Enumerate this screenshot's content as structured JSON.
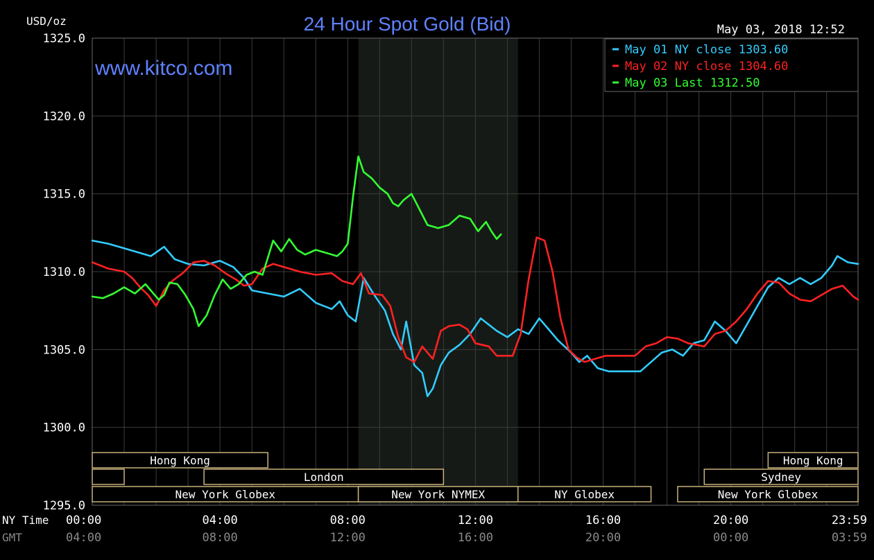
{
  "chart_data": {
    "type": "line",
    "title": "24 Hour Spot Gold (Bid)",
    "watermark": "www.kitco.com",
    "ylabel": "USD/oz",
    "timestamp": "May 03, 2018 12:52",
    "ylim": [
      1295,
      1325
    ],
    "xlim": [
      0,
      1439
    ],
    "grid": true,
    "legend_position": "top-right",
    "y_ticks": [
      {
        "value": 1325,
        "label": "1325.0"
      },
      {
        "value": 1320,
        "label": "1320.0"
      },
      {
        "value": 1315,
        "label": "1315.0"
      },
      {
        "value": 1310,
        "label": "1310.0"
      },
      {
        "value": 1305,
        "label": "1305.0"
      },
      {
        "value": 1300,
        "label": "1300.0"
      },
      {
        "value": 1295,
        "label": "1295.0"
      }
    ],
    "x_axis_rows": [
      {
        "label": "NY Time",
        "color": "#ffffff",
        "ticks": [
          {
            "m": 0,
            "label": "00:00"
          },
          {
            "m": 240,
            "label": "04:00"
          },
          {
            "m": 480,
            "label": "08:00"
          },
          {
            "m": 720,
            "label": "12:00"
          },
          {
            "m": 960,
            "label": "16:00"
          },
          {
            "m": 1200,
            "label": "20:00"
          },
          {
            "m": 1439,
            "label": "23:59"
          }
        ]
      },
      {
        "label": "GMT",
        "color": "#8a8a8a",
        "ticks": [
          {
            "m": 0,
            "label": "04:00"
          },
          {
            "m": 240,
            "label": "08:00"
          },
          {
            "m": 480,
            "label": "12:00"
          },
          {
            "m": 720,
            "label": "16:00"
          },
          {
            "m": 960,
            "label": "20:00"
          },
          {
            "m": 1200,
            "label": "00:00"
          },
          {
            "m": 1439,
            "label": "03:59"
          }
        ]
      }
    ],
    "shaded_region": [
      500,
      800
    ],
    "sessions": [
      {
        "label": "Hong Kong",
        "start": 0,
        "end": 330,
        "row": 1
      },
      {
        "label": "",
        "start": 0,
        "end": 60,
        "row": 2
      },
      {
        "label": "London",
        "start": 210,
        "end": 660,
        "row": 2
      },
      {
        "label": "New York Globex",
        "start": 0,
        "end": 500,
        "row": 3
      },
      {
        "label": "New York NYMEX",
        "start": 500,
        "end": 800,
        "row": 3
      },
      {
        "label": "NY Globex",
        "start": 800,
        "end": 1050,
        "row": 3
      },
      {
        "label": "Hong Kong",
        "start": 1270,
        "end": 1439,
        "row": 1
      },
      {
        "label": "Sydney",
        "start": 1150,
        "end": 1439,
        "row": 2
      },
      {
        "label": "New York Globex",
        "start": 1100,
        "end": 1439,
        "row": 3
      }
    ],
    "series": [
      {
        "name": "May 01 NY close 1303.60",
        "color": "#33ccff",
        "points": [
          [
            0,
            1312.0
          ],
          [
            30,
            1311.8
          ],
          [
            60,
            1311.5
          ],
          [
            90,
            1311.2
          ],
          [
            110,
            1311.0
          ],
          [
            135,
            1311.6
          ],
          [
            155,
            1310.8
          ],
          [
            180,
            1310.5
          ],
          [
            210,
            1310.4
          ],
          [
            240,
            1310.7
          ],
          [
            265,
            1310.3
          ],
          [
            285,
            1309.6
          ],
          [
            300,
            1308.8
          ],
          [
            330,
            1308.6
          ],
          [
            360,
            1308.4
          ],
          [
            390,
            1308.9
          ],
          [
            420,
            1308.0
          ],
          [
            450,
            1307.6
          ],
          [
            465,
            1308.1
          ],
          [
            480,
            1307.2
          ],
          [
            495,
            1306.8
          ],
          [
            510,
            1309.6
          ],
          [
            530,
            1308.5
          ],
          [
            550,
            1307.5
          ],
          [
            565,
            1306.0
          ],
          [
            580,
            1305.0
          ],
          [
            590,
            1306.8
          ],
          [
            605,
            1304.0
          ],
          [
            620,
            1303.5
          ],
          [
            630,
            1302.0
          ],
          [
            640,
            1302.5
          ],
          [
            655,
            1304.0
          ],
          [
            670,
            1304.8
          ],
          [
            690,
            1305.3
          ],
          [
            710,
            1306.0
          ],
          [
            730,
            1307.0
          ],
          [
            745,
            1306.6
          ],
          [
            760,
            1306.2
          ],
          [
            780,
            1305.8
          ],
          [
            800,
            1306.3
          ],
          [
            820,
            1306.0
          ],
          [
            840,
            1307.0
          ],
          [
            855,
            1306.4
          ],
          [
            875,
            1305.6
          ],
          [
            900,
            1304.8
          ],
          [
            915,
            1304.2
          ],
          [
            930,
            1304.6
          ],
          [
            950,
            1303.8
          ],
          [
            970,
            1303.6
          ],
          [
            1030,
            1303.6
          ],
          [
            1050,
            1304.2
          ],
          [
            1070,
            1304.8
          ],
          [
            1090,
            1305.0
          ],
          [
            1110,
            1304.6
          ],
          [
            1130,
            1305.4
          ],
          [
            1150,
            1305.6
          ],
          [
            1170,
            1306.8
          ],
          [
            1190,
            1306.2
          ],
          [
            1210,
            1305.4
          ],
          [
            1230,
            1306.6
          ],
          [
            1250,
            1307.8
          ],
          [
            1270,
            1309.0
          ],
          [
            1290,
            1309.6
          ],
          [
            1310,
            1309.2
          ],
          [
            1330,
            1309.6
          ],
          [
            1350,
            1309.2
          ],
          [
            1370,
            1309.6
          ],
          [
            1390,
            1310.4
          ],
          [
            1400,
            1311.0
          ],
          [
            1420,
            1310.6
          ],
          [
            1439,
            1310.5
          ]
        ]
      },
      {
        "name": "May 02 NY close 1304.60",
        "color": "#ff2222",
        "points": [
          [
            0,
            1310.6
          ],
          [
            30,
            1310.2
          ],
          [
            60,
            1310.0
          ],
          [
            75,
            1309.6
          ],
          [
            90,
            1309.0
          ],
          [
            105,
            1308.5
          ],
          [
            120,
            1307.8
          ],
          [
            135,
            1308.8
          ],
          [
            150,
            1309.4
          ],
          [
            170,
            1309.9
          ],
          [
            190,
            1310.6
          ],
          [
            210,
            1310.7
          ],
          [
            230,
            1310.4
          ],
          [
            250,
            1309.9
          ],
          [
            270,
            1309.5
          ],
          [
            285,
            1309.1
          ],
          [
            300,
            1309.2
          ],
          [
            320,
            1310.2
          ],
          [
            340,
            1310.5
          ],
          [
            360,
            1310.3
          ],
          [
            390,
            1310.0
          ],
          [
            420,
            1309.8
          ],
          [
            450,
            1309.9
          ],
          [
            470,
            1309.4
          ],
          [
            490,
            1309.2
          ],
          [
            505,
            1309.9
          ],
          [
            520,
            1308.6
          ],
          [
            545,
            1308.5
          ],
          [
            560,
            1307.8
          ],
          [
            575,
            1305.8
          ],
          [
            590,
            1304.5
          ],
          [
            605,
            1304.2
          ],
          [
            620,
            1305.2
          ],
          [
            640,
            1304.4
          ],
          [
            655,
            1306.2
          ],
          [
            670,
            1306.5
          ],
          [
            690,
            1306.6
          ],
          [
            705,
            1306.3
          ],
          [
            720,
            1305.4
          ],
          [
            745,
            1305.2
          ],
          [
            760,
            1304.6
          ],
          [
            790,
            1304.6
          ],
          [
            805,
            1306.0
          ],
          [
            820,
            1309.5
          ],
          [
            835,
            1312.2
          ],
          [
            850,
            1312.0
          ],
          [
            865,
            1310.0
          ],
          [
            880,
            1307.0
          ],
          [
            895,
            1305.0
          ],
          [
            910,
            1304.5
          ],
          [
            925,
            1304.2
          ],
          [
            945,
            1304.4
          ],
          [
            965,
            1304.6
          ],
          [
            1020,
            1304.6
          ],
          [
            1040,
            1305.2
          ],
          [
            1060,
            1305.4
          ],
          [
            1080,
            1305.8
          ],
          [
            1100,
            1305.7
          ],
          [
            1120,
            1305.4
          ],
          [
            1150,
            1305.2
          ],
          [
            1170,
            1306.0
          ],
          [
            1190,
            1306.2
          ],
          [
            1210,
            1306.8
          ],
          [
            1230,
            1307.6
          ],
          [
            1250,
            1308.6
          ],
          [
            1270,
            1309.4
          ],
          [
            1290,
            1309.3
          ],
          [
            1310,
            1308.6
          ],
          [
            1330,
            1308.2
          ],
          [
            1350,
            1308.1
          ],
          [
            1370,
            1308.5
          ],
          [
            1390,
            1308.9
          ],
          [
            1410,
            1309.1
          ],
          [
            1430,
            1308.4
          ],
          [
            1439,
            1308.2
          ]
        ]
      },
      {
        "name": "May 03 Last 1312.50",
        "color": "#33ff33",
        "points": [
          [
            0,
            1308.4
          ],
          [
            20,
            1308.3
          ],
          [
            40,
            1308.6
          ],
          [
            60,
            1309.0
          ],
          [
            80,
            1308.6
          ],
          [
            100,
            1309.2
          ],
          [
            115,
            1308.6
          ],
          [
            125,
            1308.2
          ],
          [
            135,
            1308.5
          ],
          [
            145,
            1309.3
          ],
          [
            160,
            1309.2
          ],
          [
            175,
            1308.5
          ],
          [
            190,
            1307.6
          ],
          [
            200,
            1306.5
          ],
          [
            215,
            1307.2
          ],
          [
            230,
            1308.5
          ],
          [
            245,
            1309.5
          ],
          [
            260,
            1308.9
          ],
          [
            275,
            1309.2
          ],
          [
            290,
            1309.8
          ],
          [
            305,
            1310.0
          ],
          [
            320,
            1309.8
          ],
          [
            340,
            1312.0
          ],
          [
            355,
            1311.3
          ],
          [
            370,
            1312.1
          ],
          [
            385,
            1311.4
          ],
          [
            400,
            1311.1
          ],
          [
            420,
            1311.4
          ],
          [
            440,
            1311.2
          ],
          [
            460,
            1311.0
          ],
          [
            470,
            1311.3
          ],
          [
            480,
            1311.8
          ],
          [
            490,
            1314.8
          ],
          [
            500,
            1317.4
          ],
          [
            510,
            1316.4
          ],
          [
            525,
            1316.0
          ],
          [
            540,
            1315.4
          ],
          [
            555,
            1315.0
          ],
          [
            565,
            1314.4
          ],
          [
            575,
            1314.2
          ],
          [
            585,
            1314.6
          ],
          [
            600,
            1315.0
          ],
          [
            615,
            1314.0
          ],
          [
            630,
            1313.0
          ],
          [
            650,
            1312.8
          ],
          [
            670,
            1313.0
          ],
          [
            690,
            1313.6
          ],
          [
            710,
            1313.4
          ],
          [
            725,
            1312.6
          ],
          [
            740,
            1313.2
          ],
          [
            750,
            1312.6
          ],
          [
            760,
            1312.1
          ],
          [
            768,
            1312.4
          ]
        ]
      }
    ]
  }
}
